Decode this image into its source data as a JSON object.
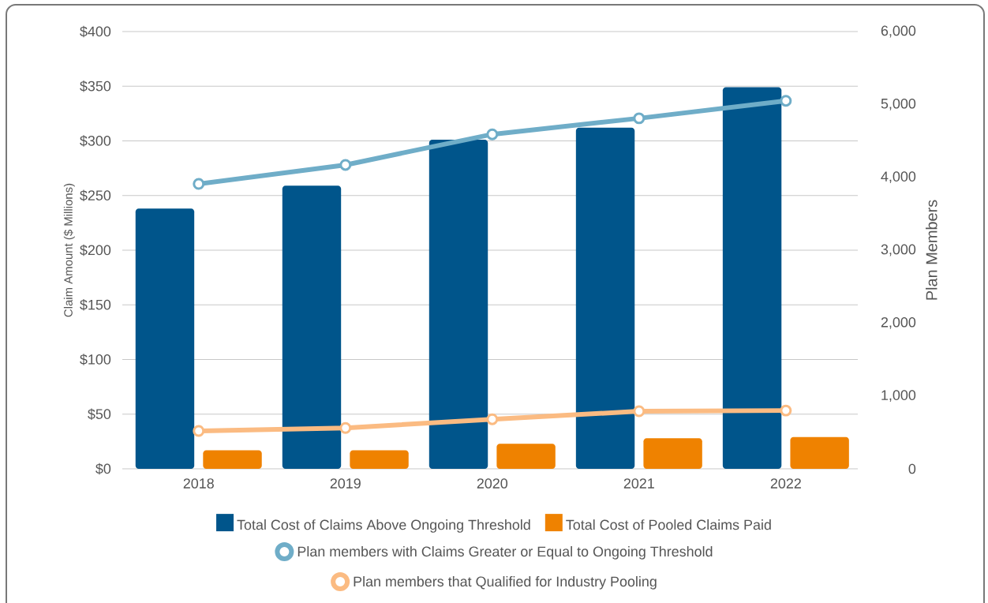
{
  "chart_data": {
    "type": "bar",
    "categories": [
      "2018",
      "2019",
      "2020",
      "2021",
      "2022"
    ],
    "ylabel": "Claim Amount ($ Millions)",
    "y2label": "Plan Members",
    "ylim": [
      0,
      400
    ],
    "yticks": [
      {
        "value": 0,
        "label": "$0"
      },
      {
        "value": 50,
        "label": "$50"
      },
      {
        "value": 100,
        "label": "$100"
      },
      {
        "value": 150,
        "label": "$150"
      },
      {
        "value": 200,
        "label": "$200"
      },
      {
        "value": 250,
        "label": "$250"
      },
      {
        "value": 300,
        "label": "$300"
      },
      {
        "value": 350,
        "label": "$350"
      },
      {
        "value": 400,
        "label": "$400"
      }
    ],
    "y2lim": [
      0,
      6000
    ],
    "y2ticks": [
      {
        "value": 0,
        "label": "0"
      },
      {
        "value": 1000,
        "label": "1,000"
      },
      {
        "value": 2000,
        "label": "2,000"
      },
      {
        "value": 3000,
        "label": "3,000"
      },
      {
        "value": 4000,
        "label": "4,000"
      },
      {
        "value": 5000,
        "label": "5,000"
      },
      {
        "value": 6000,
        "label": "6,000"
      }
    ],
    "grid": "y",
    "legend": "bottom",
    "marker": "circle",
    "series": [
      {
        "name": "Total Cost of Claims Above Ongoing Threshold",
        "color": "#00558b",
        "values": [
          238,
          259,
          301,
          312,
          349
        ]
      },
      {
        "name": "Total Cost of Pooled Claims Paid",
        "color": "#ef8200",
        "values": [
          17,
          17,
          23,
          28,
          29
        ]
      },
      {
        "name": "Plan members with Claims Greater or Equal to Ongoing Threshold",
        "type": "line",
        "axis": "y2",
        "color": "#6fadc8",
        "values": [
          3910,
          4170,
          4590,
          4810,
          5050
        ]
      },
      {
        "name": "Plan members that Qualified for Industry Pooling",
        "type": "line",
        "axis": "y2",
        "color": "#fbbb82",
        "values": [
          520,
          560,
          680,
          790,
          800
        ]
      }
    ]
  }
}
